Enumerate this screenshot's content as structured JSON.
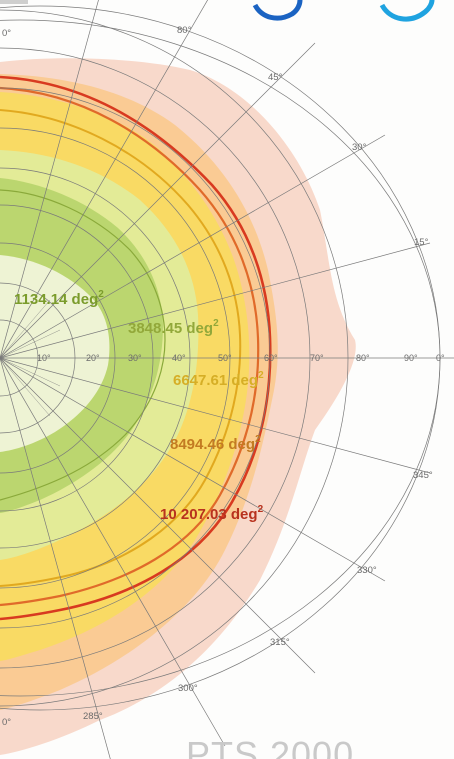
{
  "colors": {
    "brand_blue": "#1b63c2",
    "brand_cyan": "#1fa3e0",
    "grid": "#7a7a7a",
    "outer_contour": "#d83a20",
    "zone_outer": "#f7d2c2",
    "zone_orange": "#f9c98e",
    "zone_yellow": "#f8dd5c",
    "zone_light_green": "#e2ec9a",
    "zone_green": "#b6d46a",
    "zone_inner": "#eef3d4"
  },
  "angle_labels": [
    "0°",
    "15°",
    "30°",
    "45°",
    "60°",
    "80°",
    "90°",
    "285°",
    "300°",
    "315°",
    "330°",
    "345°"
  ],
  "radial_labels": [
    "10°",
    "20°",
    "30°",
    "40°",
    "50°",
    "60°",
    "70°",
    "80°",
    "90°",
    "0°"
  ],
  "areas": [
    {
      "value": "1134.14 deg",
      "exp": "2",
      "color": "#7b9c2c"
    },
    {
      "value": "3848.45 deg",
      "exp": "2",
      "color": "#92a83a"
    },
    {
      "value": "6647.61 deg",
      "exp": "2",
      "color": "#d6ae26"
    },
    {
      "value": "8494.46 deg",
      "exp": "2",
      "color": "#c37b22"
    },
    {
      "value": "10 207.03 deg",
      "exp": "2",
      "color": "#b8321e"
    }
  ],
  "bottom_title": "PTS 2000"
}
